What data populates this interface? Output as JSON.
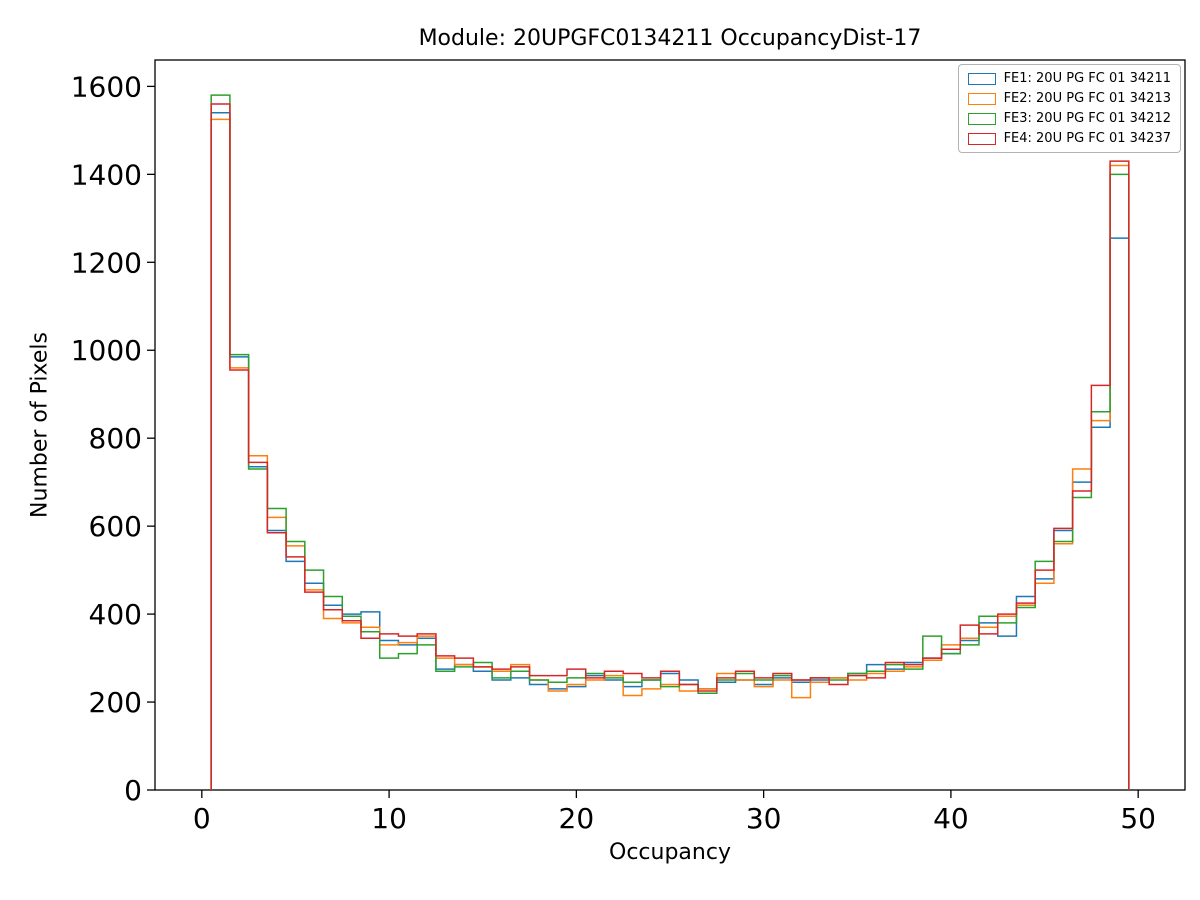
{
  "chart_data": {
    "type": "histogram",
    "histtype": "step",
    "title": "Module: 20UPGFC0134211 OccupancyDist-17",
    "xlabel": "Occupancy",
    "ylabel": "Number of Pixels",
    "xlim": [
      -2.5,
      52.5
    ],
    "ylim": [
      0,
      1660
    ],
    "xticks": [
      0,
      10,
      20,
      30,
      40,
      50
    ],
    "yticks": [
      0,
      200,
      400,
      600,
      800,
      1000,
      1200,
      1400,
      1600
    ],
    "grid": false,
    "legend_position": "upper right",
    "bin_start": 0.5,
    "bin_width": 1,
    "n_bins": 49,
    "series": [
      {
        "id": "fe1",
        "label": "FE1: 20U PG FC 01 34211",
        "color": "#1f77b4",
        "values": [
          1540,
          985,
          735,
          590,
          520,
          470,
          420,
          400,
          405,
          340,
          330,
          345,
          275,
          285,
          270,
          250,
          255,
          240,
          230,
          235,
          260,
          250,
          235,
          250,
          265,
          250,
          230,
          245,
          250,
          240,
          255,
          245,
          250,
          255,
          265,
          285,
          275,
          290,
          300,
          310,
          340,
          380,
          350,
          440,
          480,
          590,
          700,
          825,
          1255
        ]
      },
      {
        "id": "fe2",
        "label": "FE2: 20U PG FC 01 34213",
        "color": "#ff7f0e",
        "values": [
          1525,
          960,
          760,
          620,
          555,
          455,
          390,
          380,
          370,
          330,
          335,
          350,
          300,
          285,
          280,
          270,
          285,
          250,
          225,
          240,
          250,
          260,
          215,
          230,
          240,
          225,
          230,
          265,
          250,
          235,
          250,
          210,
          245,
          255,
          250,
          265,
          270,
          280,
          295,
          330,
          345,
          370,
          395,
          420,
          470,
          560,
          730,
          840,
          1420
        ]
      },
      {
        "id": "fe3",
        "label": "FE3: 20U PG FC 01 34212",
        "color": "#2ca02c",
        "values": [
          1580,
          990,
          730,
          640,
          565,
          500,
          440,
          395,
          360,
          300,
          310,
          330,
          270,
          280,
          290,
          255,
          270,
          250,
          245,
          255,
          265,
          255,
          245,
          250,
          235,
          240,
          220,
          250,
          265,
          250,
          260,
          250,
          255,
          250,
          265,
          270,
          285,
          275,
          350,
          310,
          330,
          395,
          380,
          415,
          520,
          565,
          665,
          860,
          1400
        ]
      },
      {
        "id": "fe4",
        "label": "FE4: 20U PG FC 01 34237",
        "color": "#d62728",
        "values": [
          1560,
          955,
          745,
          585,
          530,
          450,
          410,
          385,
          345,
          355,
          350,
          355,
          305,
          300,
          280,
          275,
          280,
          260,
          260,
          275,
          255,
          270,
          265,
          255,
          270,
          240,
          225,
          255,
          270,
          255,
          265,
          250,
          255,
          240,
          260,
          255,
          290,
          285,
          300,
          320,
          375,
          355,
          400,
          425,
          500,
          595,
          680,
          920,
          1430
        ]
      }
    ]
  }
}
